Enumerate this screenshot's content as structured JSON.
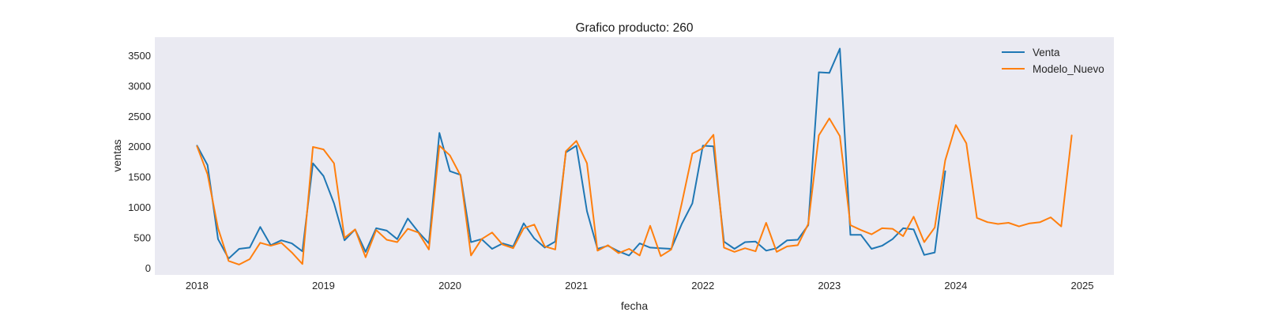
{
  "chart_data": {
    "type": "line",
    "title": "Grafico producto: 260",
    "xlabel": "fecha",
    "ylabel": "ventas",
    "x_start": "2018-01",
    "x_frequency": "monthly",
    "xlim": [
      "2017-09",
      "2025-04"
    ],
    "ylim": [
      -120,
      3800
    ],
    "xticks": [
      "2018",
      "2019",
      "2020",
      "2021",
      "2022",
      "2023",
      "2024",
      "2025"
    ],
    "yticks": [
      0,
      500,
      1000,
      1500,
      2000,
      2500,
      3000,
      3500
    ],
    "grid": false,
    "background": "#eaeaf2",
    "legend": {
      "position": "top-right"
    },
    "series": [
      {
        "name": "Venta",
        "color": "#1f77b4",
        "values": [
          2010,
          1690,
          470,
          150,
          310,
          330,
          670,
          370,
          450,
          400,
          270,
          1720,
          1510,
          1060,
          450,
          630,
          260,
          650,
          610,
          470,
          810,
          590,
          400,
          2220,
          1590,
          1530,
          420,
          470,
          310,
          400,
          350,
          730,
          480,
          330,
          430,
          1900,
          2010,
          930,
          310,
          360,
          270,
          200,
          400,
          330,
          320,
          310,
          720,
          1060,
          2010,
          2000,
          430,
          310,
          420,
          430,
          280,
          320,
          450,
          460,
          700,
          3220,
          3210,
          3610,
          540,
          540,
          310,
          360,
          470,
          650,
          630,
          210,
          250,
          1590
        ]
      },
      {
        "name": "Modelo_Nuevo",
        "color": "#ff7f0e",
        "values": [
          2000,
          1540,
          650,
          110,
          50,
          140,
          410,
          360,
          410,
          250,
          60,
          1990,
          1950,
          1720,
          490,
          630,
          170,
          620,
          460,
          420,
          640,
          580,
          300,
          2010,
          1850,
          1520,
          200,
          470,
          580,
          380,
          320,
          650,
          710,
          350,
          300,
          1920,
          2090,
          1720,
          280,
          370,
          240,
          310,
          200,
          690,
          190,
          300,
          1060,
          1880,
          1970,
          2190,
          330,
          260,
          320,
          270,
          740,
          260,
          350,
          370,
          720,
          2180,
          2460,
          2170,
          700,
          620,
          550,
          650,
          640,
          520,
          840,
          420,
          660,
          1770,
          2350,
          2050,
          820,
          750,
          720,
          740,
          680,
          730,
          750,
          830,
          680,
          2180
        ]
      }
    ]
  }
}
